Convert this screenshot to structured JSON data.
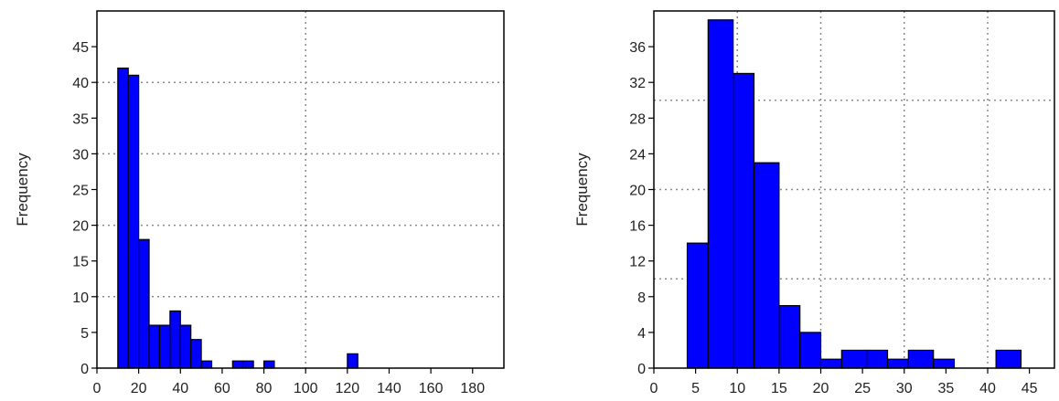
{
  "chart_data": [
    {
      "type": "bar",
      "title": "",
      "xlabel": "",
      "ylabel": "Frequency",
      "xlim": [
        0,
        195
      ],
      "ylim": [
        0,
        50
      ],
      "xticks": [
        0,
        20,
        40,
        60,
        80,
        100,
        120,
        140,
        160,
        180
      ],
      "yticks": [
        0,
        5,
        10,
        15,
        20,
        25,
        30,
        35,
        40,
        45
      ],
      "grid": true,
      "bar_color": "#0000ff",
      "bins": [
        {
          "x0": 10,
          "x1": 15,
          "value": 42
        },
        {
          "x0": 15,
          "x1": 20,
          "value": 41
        },
        {
          "x0": 20,
          "x1": 25,
          "value": 18
        },
        {
          "x0": 25,
          "x1": 30,
          "value": 6
        },
        {
          "x0": 30,
          "x1": 35,
          "value": 6
        },
        {
          "x0": 35,
          "x1": 40,
          "value": 8
        },
        {
          "x0": 40,
          "x1": 45,
          "value": 6
        },
        {
          "x0": 45,
          "x1": 50,
          "value": 4
        },
        {
          "x0": 50,
          "x1": 55,
          "value": 1
        },
        {
          "x0": 55,
          "x1": 60,
          "value": 0
        },
        {
          "x0": 60,
          "x1": 65,
          "value": 0
        },
        {
          "x0": 65,
          "x1": 70,
          "value": 1
        },
        {
          "x0": 70,
          "x1": 75,
          "value": 1
        },
        {
          "x0": 75,
          "x1": 80,
          "value": 0
        },
        {
          "x0": 80,
          "x1": 85,
          "value": 1
        },
        {
          "x0": 120,
          "x1": 125,
          "value": 2
        }
      ]
    },
    {
      "type": "bar",
      "title": "",
      "xlabel": "",
      "ylabel": "Frequency",
      "xlim": [
        0,
        48
      ],
      "ylim": [
        0,
        40
      ],
      "xticks": [
        0,
        5,
        10,
        15,
        20,
        25,
        30,
        35,
        40,
        45
      ],
      "yticks": [
        0,
        4,
        8,
        12,
        16,
        20,
        24,
        28,
        32,
        36
      ],
      "grid": true,
      "bar_color": "#0000ff",
      "bins": [
        {
          "x0": 4,
          "x1": 6.5,
          "value": 14
        },
        {
          "x0": 6.5,
          "x1": 9.5,
          "value": 39
        },
        {
          "x0": 9.5,
          "x1": 12,
          "value": 33
        },
        {
          "x0": 12,
          "x1": 15,
          "value": 23
        },
        {
          "x0": 15,
          "x1": 17.5,
          "value": 7
        },
        {
          "x0": 17.5,
          "x1": 20,
          "value": 4
        },
        {
          "x0": 20,
          "x1": 22.5,
          "value": 1
        },
        {
          "x0": 22.5,
          "x1": 25.5,
          "value": 2
        },
        {
          "x0": 25.5,
          "x1": 28,
          "value": 2
        },
        {
          "x0": 28,
          "x1": 30.5,
          "value": 1
        },
        {
          "x0": 30.5,
          "x1": 33.5,
          "value": 2
        },
        {
          "x0": 33.5,
          "x1": 36,
          "value": 1
        },
        {
          "x0": 41,
          "x1": 44,
          "value": 2
        }
      ]
    }
  ]
}
